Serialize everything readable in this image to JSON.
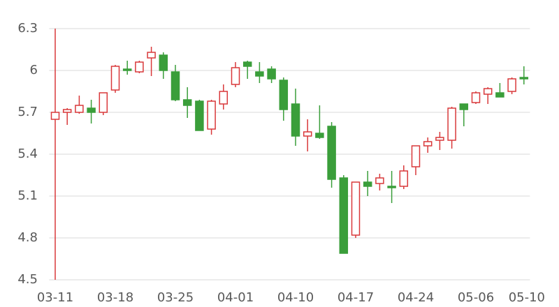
{
  "chart_data": {
    "type": "candlestick",
    "categories": [
      "03-11",
      null,
      null,
      null,
      null,
      "03-18",
      null,
      null,
      null,
      null,
      "03-25",
      null,
      null,
      null,
      null,
      "04-01",
      null,
      null,
      null,
      null,
      "04-10",
      null,
      null,
      null,
      null,
      "04-17",
      null,
      null,
      null,
      null,
      "04-24",
      null,
      null,
      null,
      null,
      "05-06",
      null,
      null,
      null,
      "05-10"
    ],
    "open": [
      5.65,
      5.7,
      5.7,
      5.73,
      5.7,
      5.86,
      6.01,
      5.99,
      6.09,
      6.11,
      5.99,
      5.79,
      5.78,
      5.58,
      5.76,
      5.9,
      6.06,
      5.99,
      6.01,
      5.93,
      5.76,
      5.53,
      5.55,
      5.6,
      5.23,
      4.82,
      5.2,
      5.19,
      5.17,
      5.17,
      5.31,
      5.46,
      5.5,
      5.5,
      5.76,
      5.77,
      5.83,
      5.84,
      5.85,
      5.95
    ],
    "high": [
      6.3,
      5.73,
      5.82,
      5.79,
      5.84,
      6.04,
      6.07,
      6.07,
      6.17,
      6.13,
      6.04,
      5.88,
      5.79,
      5.79,
      5.9,
      6.06,
      6.07,
      6.06,
      6.03,
      5.95,
      5.87,
      5.65,
      5.75,
      5.63,
      5.25,
      5.2,
      5.28,
      5.26,
      5.28,
      5.32,
      5.46,
      5.52,
      5.56,
      5.74,
      5.76,
      5.85,
      5.88,
      5.91,
      5.95,
      6.03
    ],
    "low": [
      4.5,
      5.61,
      5.69,
      5.62,
      5.68,
      5.84,
      5.97,
      5.98,
      5.96,
      5.94,
      5.78,
      5.66,
      5.57,
      5.54,
      5.72,
      5.88,
      5.94,
      5.91,
      5.91,
      5.64,
      5.46,
      5.42,
      5.51,
      5.16,
      4.69,
      4.8,
      5.1,
      5.14,
      5.05,
      5.15,
      5.25,
      5.41,
      5.43,
      5.44,
      5.6,
      5.76,
      5.76,
      5.81,
      5.83,
      5.9
    ],
    "close": [
      5.7,
      5.72,
      5.75,
      5.7,
      5.84,
      6.03,
      6.0,
      6.06,
      6.13,
      6.0,
      5.79,
      5.75,
      5.57,
      5.78,
      5.85,
      6.02,
      6.03,
      5.96,
      5.94,
      5.72,
      5.53,
      5.56,
      5.52,
      5.22,
      4.69,
      5.2,
      5.17,
      5.23,
      5.16,
      5.28,
      5.46,
      5.49,
      5.52,
      5.73,
      5.72,
      5.84,
      5.87,
      5.81,
      5.94,
      5.94
    ],
    "up_color": "#d9383a",
    "down_color": "#3a9e3a",
    "ylim": [
      4.5,
      6.3
    ],
    "yticks": [
      4.5,
      4.8,
      5.1,
      5.4,
      5.7,
      6,
      6.3
    ],
    "grid": true
  }
}
